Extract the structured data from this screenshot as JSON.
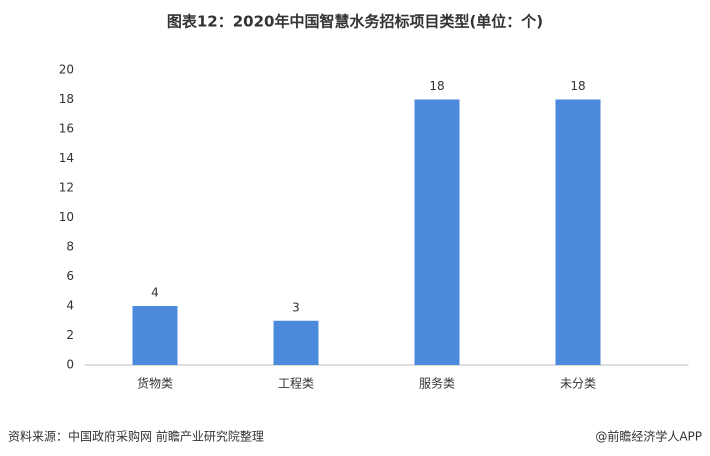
{
  "chart_data": {
    "type": "bar",
    "title": "图表12：2020年中国智慧水务招标项目类型(单位：个)",
    "categories": [
      "货物类",
      "工程类",
      "服务类",
      "未分类"
    ],
    "values": [
      4,
      3,
      18,
      18
    ],
    "color": "#4a89dc",
    "ylim": [
      0,
      20
    ],
    "yticks": [
      0,
      2,
      4,
      6,
      8,
      10,
      12,
      14,
      16,
      18,
      20
    ],
    "source": "资料来源：中国政府采购网 前瞻产业研究院整理",
    "credit": "@前瞻经济学人APP"
  }
}
